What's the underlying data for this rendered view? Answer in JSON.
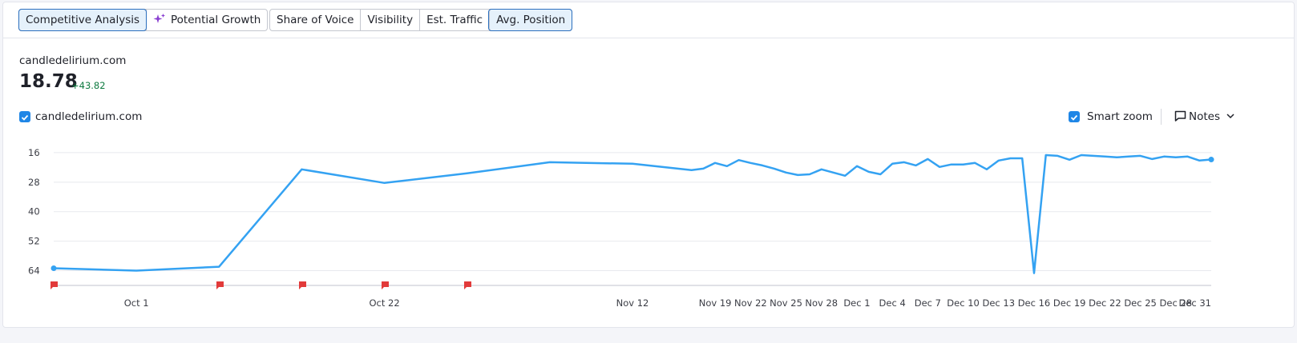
{
  "tabs": {
    "group1": [
      "Competitive Analysis",
      "Potential Growth"
    ],
    "group2": [
      "Share of Voice",
      "Visibility",
      "Est. Traffic",
      "Avg. Position"
    ]
  },
  "domain": "candledelirium.com",
  "metric": {
    "value": "18.78",
    "change": "+43.82"
  },
  "controls": {
    "smart_zoom": "Smart zoom",
    "notes": "Notes"
  },
  "chart_data": {
    "type": "line",
    "x": [
      "Sep 24",
      "Oct 1",
      "Oct 8",
      "Oct 15",
      "Oct 22",
      "Oct 29",
      "Nov 5",
      "Nov 12",
      "Nov 17",
      "Nov 18",
      "Nov 19",
      "Nov 20",
      "Nov 21",
      "Nov 22",
      "Nov 23",
      "Nov 24",
      "Nov 25",
      "Nov 26",
      "Nov 27",
      "Nov 28",
      "Nov 29",
      "Nov 30",
      "Dec 1",
      "Dec 2",
      "Dec 3",
      "Dec 4",
      "Dec 5",
      "Dec 6",
      "Dec 7",
      "Dec 8",
      "Dec 9",
      "Dec 10",
      "Dec 11",
      "Dec 12",
      "Dec 13",
      "Dec 14",
      "Dec 15",
      "Dec 16",
      "Dec 17",
      "Dec 18",
      "Dec 19",
      "Dec 20",
      "Dec 21",
      "Dec 22",
      "Dec 23",
      "Dec 24",
      "Dec 25",
      "Dec 26",
      "Dec 27",
      "Dec 28",
      "Dec 29",
      "Dec 30",
      "Dec 31"
    ],
    "series": [
      {
        "name": "candledelirium.com",
        "color": "#34a2f2",
        "values": [
          63,
          64,
          62.4,
          22.8,
          28.3,
          24.4,
          19.9,
          20.5,
          23.1,
          22.5,
          20.2,
          21.5,
          19,
          20.2,
          21.2,
          22.5,
          24.1,
          25.1,
          24.8,
          22.8,
          24.1,
          25.4,
          21.5,
          23.8,
          24.8,
          20.5,
          19.9,
          21.2,
          18.6,
          21.8,
          20.8,
          20.8,
          20.2,
          22.8,
          19.2,
          18.3,
          18.3,
          65,
          17,
          17.3,
          18.9,
          17,
          17.3,
          17.6,
          17.9,
          17.6,
          17.3,
          18.6,
          17.6,
          17.9,
          17.6,
          19.2,
          18.8
        ]
      }
    ],
    "xlim": [
      "Sep 24",
      "Dec 31"
    ],
    "xticks": [
      "Oct 1",
      "Oct 22",
      "Nov 12",
      "Nov 19",
      "Nov 22",
      "Nov 25",
      "Nov 28",
      "Dec 1",
      "Dec 4",
      "Dec 7",
      "Dec 10",
      "Dec 13",
      "Dec 16",
      "Dec 19",
      "Dec 22",
      "Dec 25",
      "Dec 28",
      "Dec 31"
    ],
    "ylim": [
      13,
      70
    ],
    "y_inverted": true,
    "yticks": [
      16,
      28,
      40,
      52,
      64
    ],
    "grid": true
  }
}
